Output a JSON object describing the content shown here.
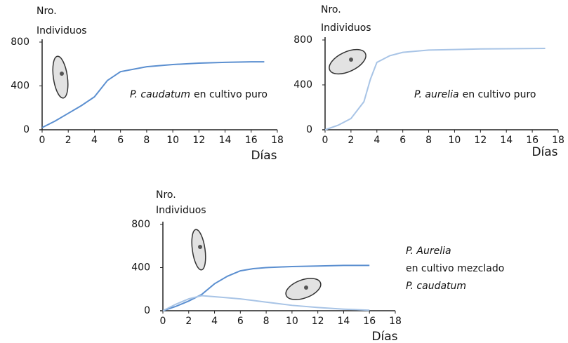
{
  "chart_data": [
    {
      "type": "line",
      "ylabel": [
        "Nro.",
        "Individuos"
      ],
      "xlabel": "Días",
      "x": [
        0,
        1,
        2,
        3,
        4,
        5,
        6,
        8,
        10,
        12,
        14,
        16,
        17
      ],
      "series": [
        {
          "name": "P. caudatum",
          "color": "#5b8fd0",
          "values": [
            20,
            80,
            150,
            220,
            300,
            450,
            530,
            575,
            595,
            608,
            615,
            620,
            620
          ]
        }
      ],
      "annotation": "en cultivo puro",
      "xlim": [
        0,
        18
      ],
      "ylim": [
        0,
        800
      ],
      "xticks": [
        0,
        2,
        4,
        6,
        8,
        10,
        12,
        14,
        16,
        18
      ],
      "yticks": [
        0,
        400,
        800
      ],
      "grid": false
    },
    {
      "type": "line",
      "ylabel": [
        "Nro.",
        "Individuos"
      ],
      "xlabel": "Días",
      "x": [
        0,
        1,
        2,
        3,
        3.5,
        4,
        5,
        6,
        8,
        10,
        12,
        14,
        17
      ],
      "series": [
        {
          "name": "P. aurelia",
          "color": "#a8c4e6",
          "values": [
            0,
            40,
            100,
            250,
            450,
            600,
            660,
            690,
            710,
            715,
            720,
            722,
            725
          ]
        }
      ],
      "annotation": "en cultivo puro",
      "xlim": [
        0,
        18
      ],
      "ylim": [
        0,
        800
      ],
      "xticks": [
        0,
        2,
        4,
        6,
        8,
        10,
        12,
        14,
        16,
        18
      ],
      "yticks": [
        0,
        400,
        800
      ],
      "grid": false
    },
    {
      "type": "line",
      "ylabel": [
        "Nro.",
        "Individuos"
      ],
      "xlabel": "Días",
      "x": [
        0,
        1,
        2,
        3,
        4,
        5,
        6,
        7,
        8,
        10,
        12,
        14,
        16
      ],
      "series": [
        {
          "name": "P. Aurelia",
          "color": "#5b8fd0",
          "values": [
            0,
            40,
            90,
            150,
            250,
            320,
            370,
            390,
            400,
            410,
            415,
            420,
            420
          ]
        },
        {
          "name": "P. caudatum",
          "color": "#a8c4e6",
          "values": [
            0,
            60,
            110,
            140,
            130,
            120,
            110,
            95,
            80,
            50,
            30,
            15,
            5
          ]
        }
      ],
      "annotation": "en cultivo mezclado",
      "xlim": [
        0,
        18
      ],
      "ylim": [
        0,
        800
      ],
      "xticks": [
        0,
        2,
        4,
        6,
        8,
        10,
        12,
        14,
        16,
        18
      ],
      "yticks": [
        0,
        400,
        800
      ],
      "grid": false
    }
  ]
}
